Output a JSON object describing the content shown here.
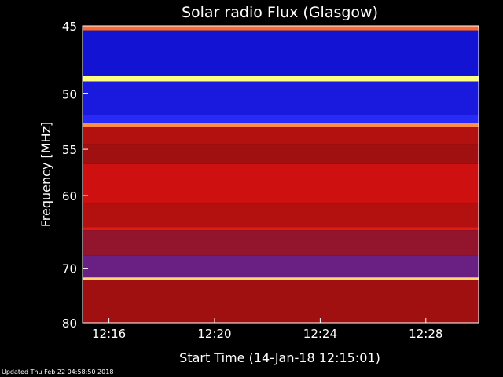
{
  "chart_data": {
    "type": "heatmap",
    "title": "Solar radio Flux (Glasgow)",
    "xlabel": "Start Time (14-Jan-18 12:15:01)",
    "ylabel": "Frequency [MHz]",
    "x_ticks": [
      "12:16",
      "12:20",
      "12:24",
      "12:28"
    ],
    "x_tick_minutes": [
      1,
      5,
      9,
      13
    ],
    "xlim_minutes": [
      0,
      15
    ],
    "y_ticks": [
      "45",
      "50",
      "55",
      "60",
      "70",
      "80"
    ],
    "y_tick_values": [
      45,
      50,
      55,
      60,
      70,
      80
    ],
    "ylim": [
      45,
      80
    ],
    "y_scale": "reciprocal",
    "colormap": [
      "#1a0a3a",
      "#1010d0",
      "#3030ff",
      "#a01010",
      "#e01010",
      "#ff8040",
      "#ffff80"
    ],
    "bands": [
      {
        "fmin": 45.0,
        "fmax": 45.3,
        "level": 0.8
      },
      {
        "fmin": 45.3,
        "fmax": 48.6,
        "level": 0.18
      },
      {
        "fmin": 48.6,
        "fmax": 49.0,
        "level": 1.0
      },
      {
        "fmin": 49.0,
        "fmax": 51.8,
        "level": 0.22
      },
      {
        "fmin": 51.8,
        "fmax": 52.5,
        "level": 0.3
      },
      {
        "fmin": 52.5,
        "fmax": 52.9,
        "level": 0.85
      },
      {
        "fmin": 52.9,
        "fmax": 54.5,
        "level": 0.55
      },
      {
        "fmin": 54.5,
        "fmax": 56.5,
        "level": 0.5
      },
      {
        "fmin": 56.5,
        "fmax": 61.0,
        "level": 0.62
      },
      {
        "fmin": 61.0,
        "fmax": 64.0,
        "level": 0.55
      },
      {
        "fmin": 64.0,
        "fmax": 64.4,
        "level": 0.68
      },
      {
        "fmin": 64.4,
        "fmax": 68.0,
        "level": 0.48
      },
      {
        "fmin": 68.0,
        "fmax": 71.5,
        "level": 0.42
      },
      {
        "fmin": 71.5,
        "fmax": 71.9,
        "level": 0.95
      },
      {
        "fmin": 71.9,
        "fmax": 80.0,
        "level": 0.5
      }
    ]
  },
  "footer": {
    "updated": "Updated Thu Feb 22 04:58:50 2018"
  }
}
